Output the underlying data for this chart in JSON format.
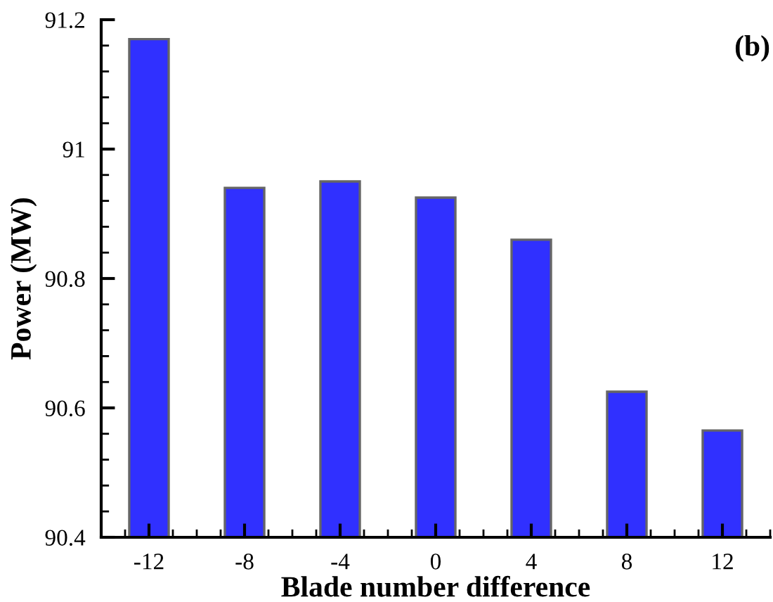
{
  "chart_data": {
    "type": "bar",
    "xlabel": "Blade number difference",
    "ylabel": "Power (MW)",
    "annotations": [
      "(b)"
    ],
    "x": [
      -12,
      -8,
      -4,
      0,
      4,
      8,
      12
    ],
    "values": [
      91.17,
      90.94,
      90.95,
      90.925,
      90.86,
      90.625,
      90.565
    ],
    "color": "#3030ff",
    "xlim": [
      -14,
      14
    ],
    "xticks": [
      -12,
      -8,
      -4,
      0,
      4,
      8,
      12
    ],
    "ylim": [
      90.4,
      91.2
    ],
    "yticks": [
      90.4,
      90.6,
      90.8,
      91,
      91.2
    ],
    "grid": false,
    "legend": false
  }
}
